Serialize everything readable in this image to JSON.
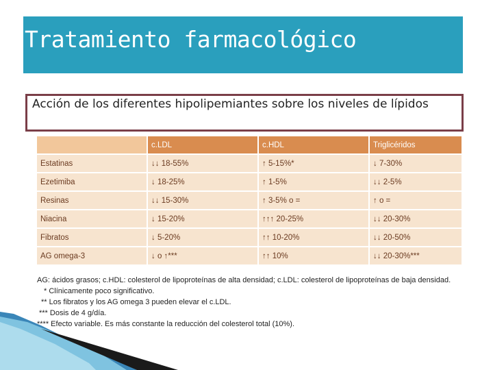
{
  "slide": {
    "title": "Tratamiento farmacológico",
    "caption": "Acción de los diferentes hipolipemiantes sobre los niveles de lípidos"
  },
  "table": {
    "headers": [
      "",
      "c.LDL",
      "c.HDL",
      "Triglicéridos"
    ],
    "rows": [
      [
        "Estatinas",
        "↓↓ 18-55%",
        "↑ 5-15%*",
        "↓ 7-30%"
      ],
      [
        "Ezetimiba",
        "↓ 18-25%",
        "↑ 1-5%",
        "↓↓ 2-5%"
      ],
      [
        "Resinas",
        "↓↓ 15-30%",
        "↑ 3-5% o =",
        "↑ o ="
      ],
      [
        "Niacina",
        "↓ 15-20%",
        "↑↑↑ 20-25%",
        "↓↓ 20-30%"
      ],
      [
        "Fibratos",
        "↓ 5-20%",
        "↑↑ 10-20%",
        "↓↓ 20-50%"
      ],
      [
        "AG omega-3",
        "↓ o ↑***",
        "↑↑ 10%",
        "↓↓ 20-30%***"
      ]
    ]
  },
  "footnotes": [
    "AG: ácidos grasos; c.HDL: colesterol de lipoproteínas de alta densidad; c.LDL: colesterol de lipoproteínas de baja densidad.",
    "* Clínicamente poco significativo.",
    "** Los fibratos y los AG omega 3 pueden elevar el c.LDL.",
    "*** Dosis de 4 g/día.",
    "**** Efecto variable. Es más constante la reducción del colesterol total (10%)."
  ],
  "colors": {
    "title_bar": "#2a9fbd",
    "caption_border": "#7a3e48",
    "header_bg": "#d98c4f",
    "cell_bg": "#f7e4cf"
  }
}
